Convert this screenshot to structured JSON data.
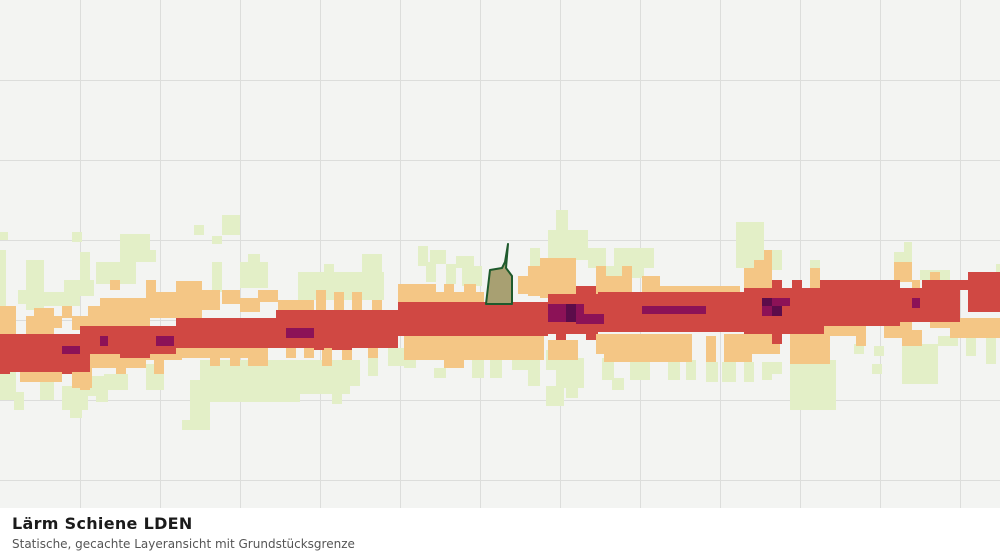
{
  "caption": {
    "title": "Lärm Schiene LDEN",
    "subtitle": "Statische, gecachte Layeransicht mit Grundstücksgrenze"
  },
  "colors": {
    "background": "#f3f4f2",
    "grid": "#dcdddb",
    "noise_low": "#e3efc7",
    "noise_mid": "#f4c685",
    "noise_high": "#d04843",
    "noise_very_high": "#8c1257",
    "noise_extreme": "#5c0c4a",
    "parcel_fill": "#a8a072",
    "parcel_stroke": "#1e5a2c"
  }
}
